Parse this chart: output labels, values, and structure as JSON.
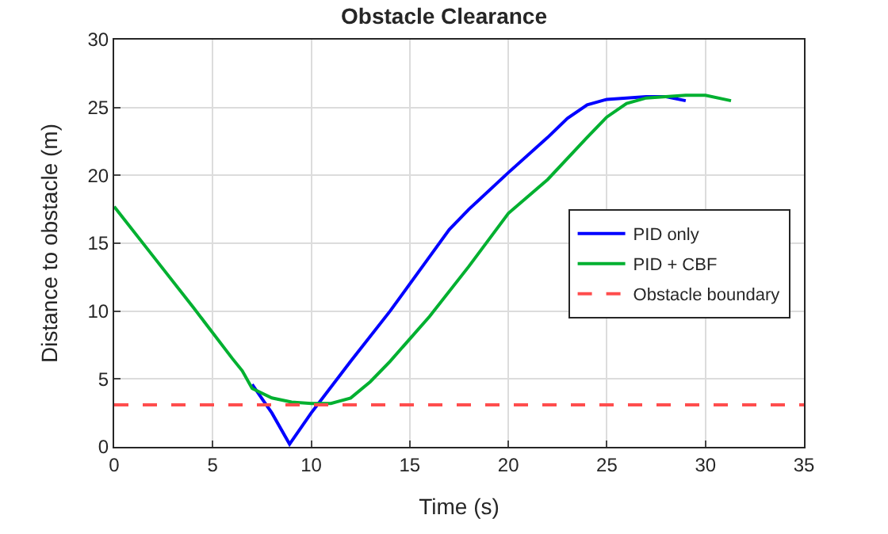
{
  "chart_data": {
    "type": "line",
    "title": "Obstacle Clearance",
    "xlabel": "Time (s)",
    "ylabel": "Distance to obstacle (m)",
    "xlim": [
      0,
      35
    ],
    "xticks": [
      0,
      5,
      10,
      15,
      20,
      25,
      30,
      35
    ],
    "ylim": [
      0,
      30
    ],
    "yticks": [
      0,
      5,
      10,
      15,
      20,
      25,
      30
    ],
    "grid": true,
    "legend": "right",
    "line_style": "solid",
    "marker": "none",
    "series": [
      {
        "name": "PID only",
        "color": "#0000ff",
        "x": [
          7,
          8,
          8.9,
          10,
          12,
          14,
          16,
          17,
          18,
          20,
          22,
          23,
          24,
          25,
          27,
          28,
          29
        ],
        "values": [
          4.6,
          2.5,
          0.2,
          2.5,
          6.3,
          10,
          14,
          16,
          17.5,
          20.2,
          22.8,
          24.2,
          25.2,
          25.6,
          25.8,
          25.8,
          25.5
        ]
      },
      {
        "name": "PID + CBF",
        "color": "#00b030",
        "x": [
          0,
          2,
          4,
          6,
          6.5,
          7,
          8,
          9,
          10,
          11,
          12,
          13,
          14,
          16,
          18,
          20,
          22,
          24,
          25,
          26,
          27,
          29,
          30,
          31.3
        ],
        "values": [
          17.7,
          14,
          10.3,
          6.5,
          5.6,
          4.3,
          3.6,
          3.3,
          3.2,
          3.2,
          3.6,
          4.8,
          6.3,
          9.6,
          13.3,
          17.2,
          19.7,
          22.8,
          24.3,
          25.3,
          25.7,
          25.9,
          25.9,
          25.5
        ]
      }
    ],
    "ref_lines": [
      {
        "axis": "y",
        "value": 3.1,
        "label": "Obstacle boundary",
        "color": "#ff4d4d",
        "line_style": "dashed"
      }
    ]
  }
}
